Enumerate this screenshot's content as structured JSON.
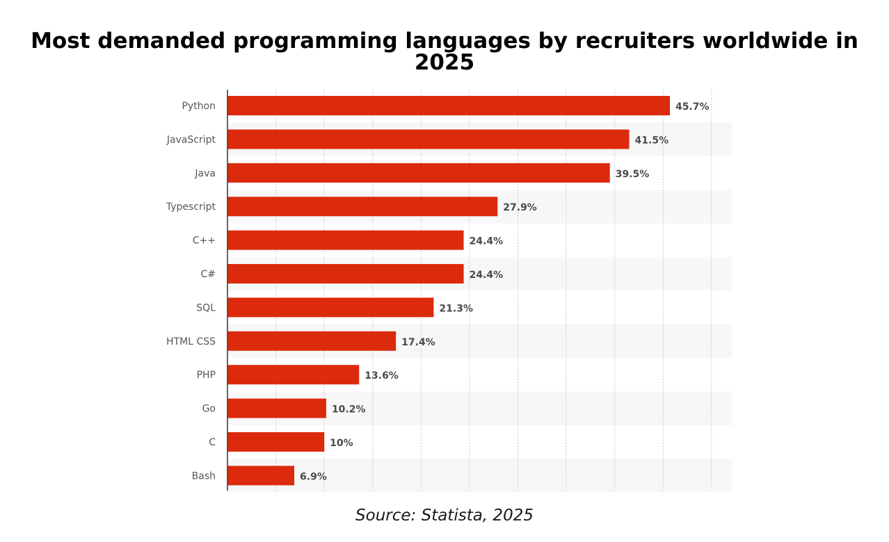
{
  "chart_data": {
    "type": "bar",
    "orientation": "horizontal",
    "title": "Most demanded programming languages by recruiters worldwide in 2025",
    "categories": [
      "Python",
      "JavaScript",
      "Java",
      "Typescript",
      "C++",
      "C#",
      "SQL",
      "HTML CSS",
      "PHP",
      "Go",
      "C",
      "Bash"
    ],
    "values": [
      45.7,
      41.5,
      39.5,
      27.9,
      24.4,
      24.4,
      21.3,
      17.4,
      13.6,
      10.2,
      10,
      6.9
    ],
    "value_labels": [
      "45.7%",
      "41.5%",
      "39.5%",
      "27.9%",
      "24.4%",
      "24.4%",
      "21.3%",
      "17.4%",
      "13.6%",
      "10.2%",
      "10%",
      "6.9%"
    ],
    "xlabel": "",
    "ylabel": "",
    "xlim": [
      0,
      52.5
    ],
    "grid": true,
    "bar_color": "#dc2a0c",
    "source": "Source: Statista, 2025"
  }
}
